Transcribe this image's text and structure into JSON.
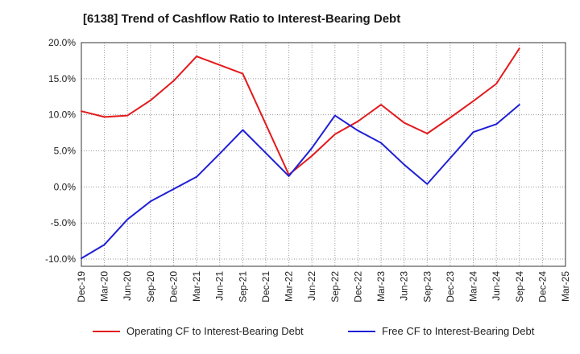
{
  "chart_data": {
    "type": "line",
    "title": "[6138]  Trend of Cashflow Ratio to Interest-Bearing Debt",
    "xlabel": "",
    "ylabel": "",
    "categories": [
      "Dec-19",
      "Mar-20",
      "Jun-20",
      "Sep-20",
      "Dec-20",
      "Mar-21",
      "Jun-21",
      "Sep-21",
      "Dec-21",
      "Mar-22",
      "Jun-22",
      "Sep-22",
      "Dec-22",
      "Mar-23",
      "Jun-23",
      "Sep-23",
      "Dec-23",
      "Mar-24",
      "Jun-24",
      "Sep-24",
      "Dec-24",
      "Mar-25"
    ],
    "y_ticks": [
      "20.0%",
      "15.0%",
      "10.0%",
      "5.0%",
      "0.0%",
      "-5.0%",
      "-10.0%"
    ],
    "ylim": [
      -11,
      20
    ],
    "grid": true,
    "legend_position": "bottom",
    "series": [
      {
        "name": "Operating CF to Interest-Bearing Debt",
        "color": "#e31a1c",
        "values": [
          10.5,
          9.7,
          9.9,
          12.0,
          14.7,
          18.1,
          16.9,
          15.7,
          8.7,
          1.7,
          4.3,
          7.3,
          9.1,
          11.4,
          8.9,
          7.4,
          9.6,
          11.9,
          14.3,
          19.2,
          null,
          null
        ]
      },
      {
        "name": "Free CF to Interest-Bearing Debt",
        "color": "#1f1fd6",
        "values": [
          -9.9,
          -8.0,
          -4.5,
          -2.0,
          -0.3,
          1.4,
          4.6,
          7.9,
          4.7,
          1.5,
          5.4,
          9.9,
          7.8,
          6.1,
          3.1,
          0.4,
          4.0,
          7.6,
          8.7,
          11.4,
          null,
          null
        ]
      }
    ]
  }
}
